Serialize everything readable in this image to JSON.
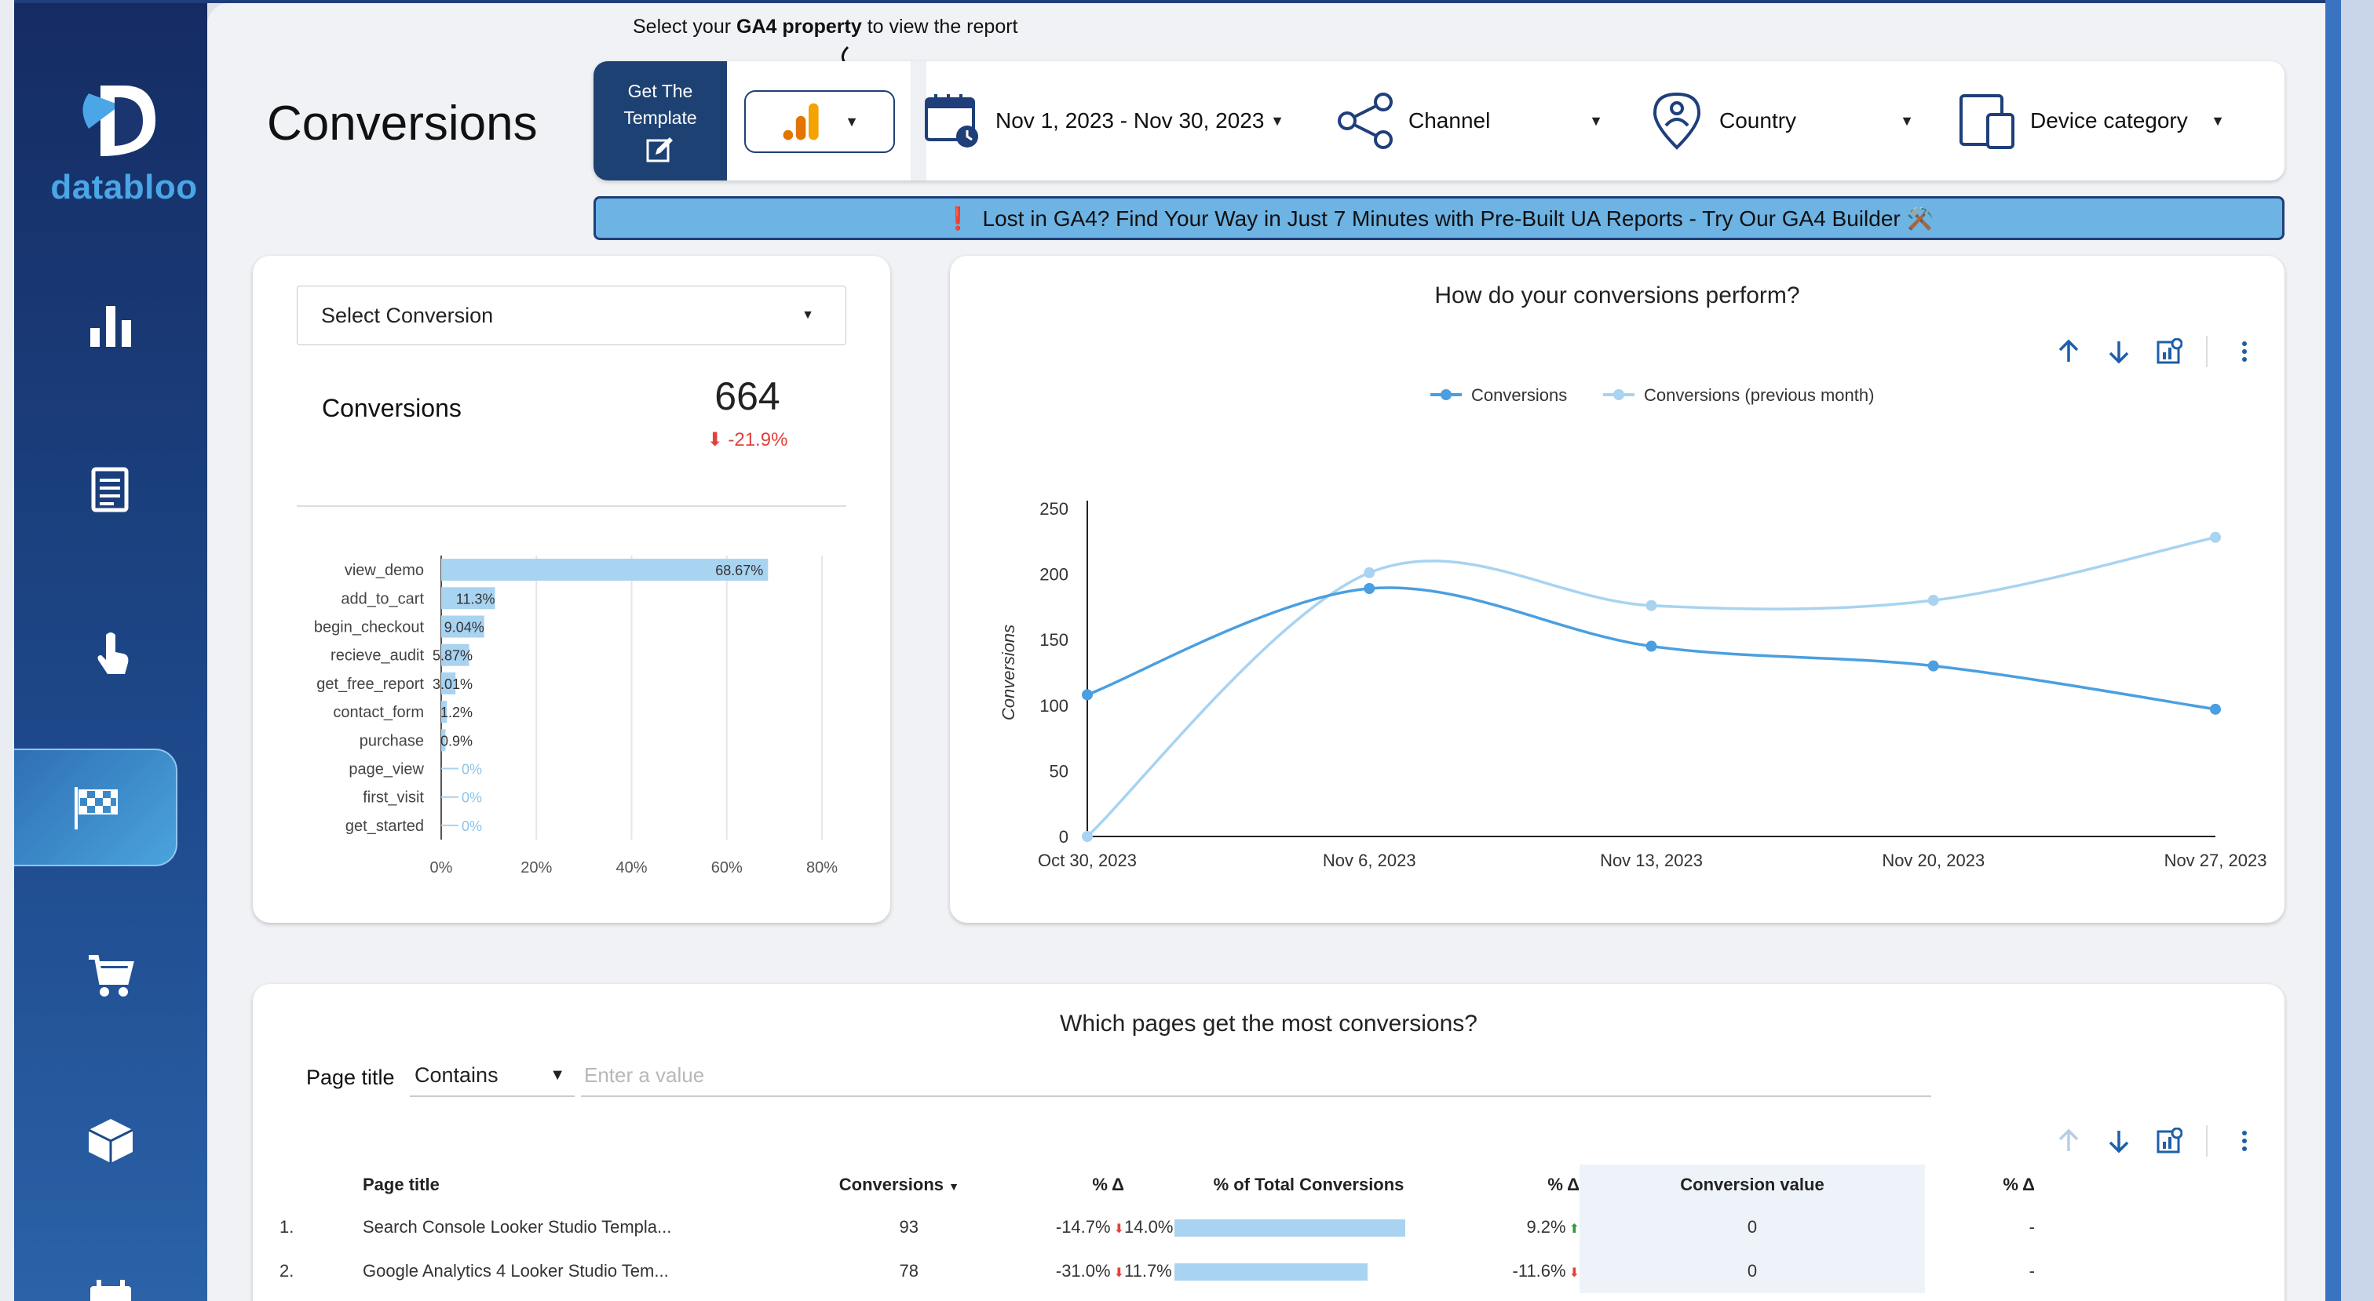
{
  "app": {
    "brand": "databloo",
    "page_title": "Conversions"
  },
  "header": {
    "hint_prefix": "Select your ",
    "hint_bold": "GA4 property",
    "hint_suffix": " to view the report",
    "template_button": "Get The Template",
    "date_range": "Nov 1, 2023 - Nov 30, 2023",
    "channel": "Channel",
    "country": "Country",
    "device": "Device category",
    "banner_mark": "❗",
    "banner_text": "Lost in GA4? Find Your Way in Just 7 Minutes with Pre-Built UA Reports - Try Our GA4 Builder ⚒️"
  },
  "sidebar": {
    "items": [
      {
        "icon": "bar-chart-icon",
        "active": false
      },
      {
        "icon": "document-icon",
        "active": false
      },
      {
        "icon": "touch-icon",
        "active": false
      },
      {
        "icon": "checkered-flag-icon",
        "active": true
      },
      {
        "icon": "shopping-cart-icon",
        "active": false
      },
      {
        "icon": "package-icon",
        "active": false
      },
      {
        "icon": "calendar-icon",
        "active": false
      }
    ]
  },
  "conversion_card": {
    "select_label": "Select Conversion",
    "kpi_label": "Conversions",
    "kpi_value": "664",
    "kpi_delta": "-21.9%"
  },
  "line_card": {
    "title": "How do your conversions perform?"
  },
  "table_card": {
    "title": "Which pages get the most conversions?",
    "filter_label": "Page title",
    "operator": "Contains",
    "placeholder": "Enter a value",
    "headers": [
      "Page title",
      "Conversions",
      "% Δ",
      "% of Total Conversions",
      "% Δ",
      "Conversion value",
      "% Δ"
    ],
    "rows": [
      {
        "rank": "1.",
        "page": "Search Console Looker Studio Templa...",
        "conversions": "93",
        "delta": "-14.7%",
        "share": "14.0%",
        "share_value": 14.0,
        "share_delta": "9.2%",
        "share_delta_dir": "up",
        "value": "0",
        "value_delta": "-"
      },
      {
        "rank": "2.",
        "page": "Google Analytics 4 Looker Studio Tem...",
        "conversions": "78",
        "delta": "-31.0%",
        "share": "11.7%",
        "share_value": 11.7,
        "share_delta": "-11.6%",
        "share_delta_dir": "down",
        "value": "0",
        "value_delta": "-"
      }
    ]
  },
  "chart_data": [
    {
      "type": "bar",
      "orientation": "horizontal",
      "categories": [
        "view_demo",
        "add_to_cart",
        "begin_checkout",
        "recieve_audit",
        "get_free_report",
        "contact_form",
        "purchase",
        "page_view",
        "first_visit",
        "get_started"
      ],
      "values": [
        68.67,
        11.3,
        9.04,
        5.87,
        3.01,
        1.2,
        0.9,
        0,
        0,
        0
      ],
      "labels": [
        "68.67%",
        "11.3%",
        "9.04%",
        "5.87%",
        "3.01%",
        "1.2%",
        "0.9%",
        "0%",
        "0%",
        "0%"
      ],
      "xlim": [
        0,
        80
      ],
      "xticks": [
        "0%",
        "20%",
        "40%",
        "60%",
        "80%"
      ],
      "grid": true
    },
    {
      "type": "line",
      "title": "How do your conversions perform?",
      "x": [
        "Oct 30, 2023",
        "Nov 6, 2023",
        "Nov 13, 2023",
        "Nov 20, 2023",
        "Nov 27, 2023"
      ],
      "series": [
        {
          "name": "Conversions",
          "values": [
            108,
            189,
            145,
            130,
            97
          ],
          "color": "#4a9fe0"
        },
        {
          "name": "Conversions (previous month)",
          "values": [
            0,
            201,
            176,
            180,
            228
          ],
          "color": "#a8d3f1"
        }
      ],
      "ylabel": "Conversions",
      "ylim": [
        0,
        250
      ],
      "yticks": [
        "0",
        "50",
        "100",
        "150",
        "200",
        "250"
      ],
      "legend": "top"
    }
  ]
}
